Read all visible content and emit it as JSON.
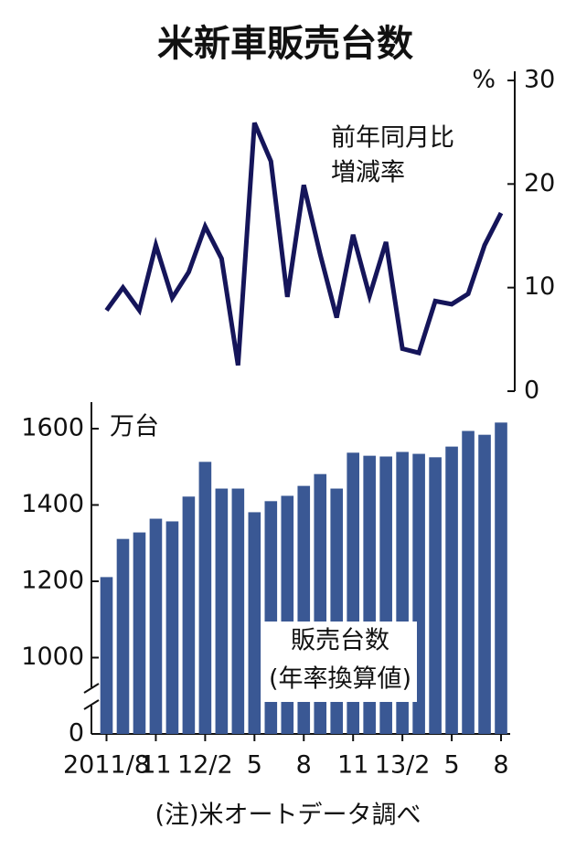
{
  "title": "米新車販売台数",
  "note": "(注)米オートデータ調べ",
  "chart_data": [
    {
      "type": "line",
      "y_label": "%",
      "annotation_lines": [
        "前年同月比",
        "増減率"
      ],
      "color": "#15155a",
      "axis_side": "right",
      "ylim": [
        0,
        30
      ],
      "yticks": [
        0,
        10,
        20,
        30
      ],
      "values": [
        7.8,
        10.0,
        7.8,
        14.1,
        9.0,
        11.5,
        15.9,
        12.8,
        2.5,
        25.9,
        22.2,
        9.1,
        19.9,
        13.2,
        7.1,
        15.1,
        9.2,
        14.4,
        4.1,
        3.7,
        8.7,
        8.4,
        9.4,
        14.1,
        17.2
      ]
    },
    {
      "type": "bar",
      "y_label": "万台",
      "annotation_lines": [
        "販売台数",
        "(年率換算値)"
      ],
      "color": "#3a5894",
      "axis_side": "left",
      "ylim": [
        0,
        1670
      ],
      "axis_break": [
        0,
        800
      ],
      "yticks": [
        0,
        1000,
        1200,
        1400,
        1600
      ],
      "categories": [
        "2011/8",
        null,
        null,
        "11",
        null,
        null,
        "12/2",
        null,
        null,
        "5",
        null,
        null,
        "8",
        null,
        null,
        "11",
        null,
        null,
        "13/2",
        null,
        null,
        "5",
        null,
        null,
        "8"
      ],
      "values": [
        1211,
        1311,
        1328,
        1364,
        1357,
        1422,
        1513,
        1443,
        1443,
        1381,
        1410,
        1424,
        1450,
        1481,
        1443,
        1537,
        1529,
        1527,
        1539,
        1534,
        1525,
        1553,
        1594,
        1584,
        1616
      ]
    }
  ]
}
